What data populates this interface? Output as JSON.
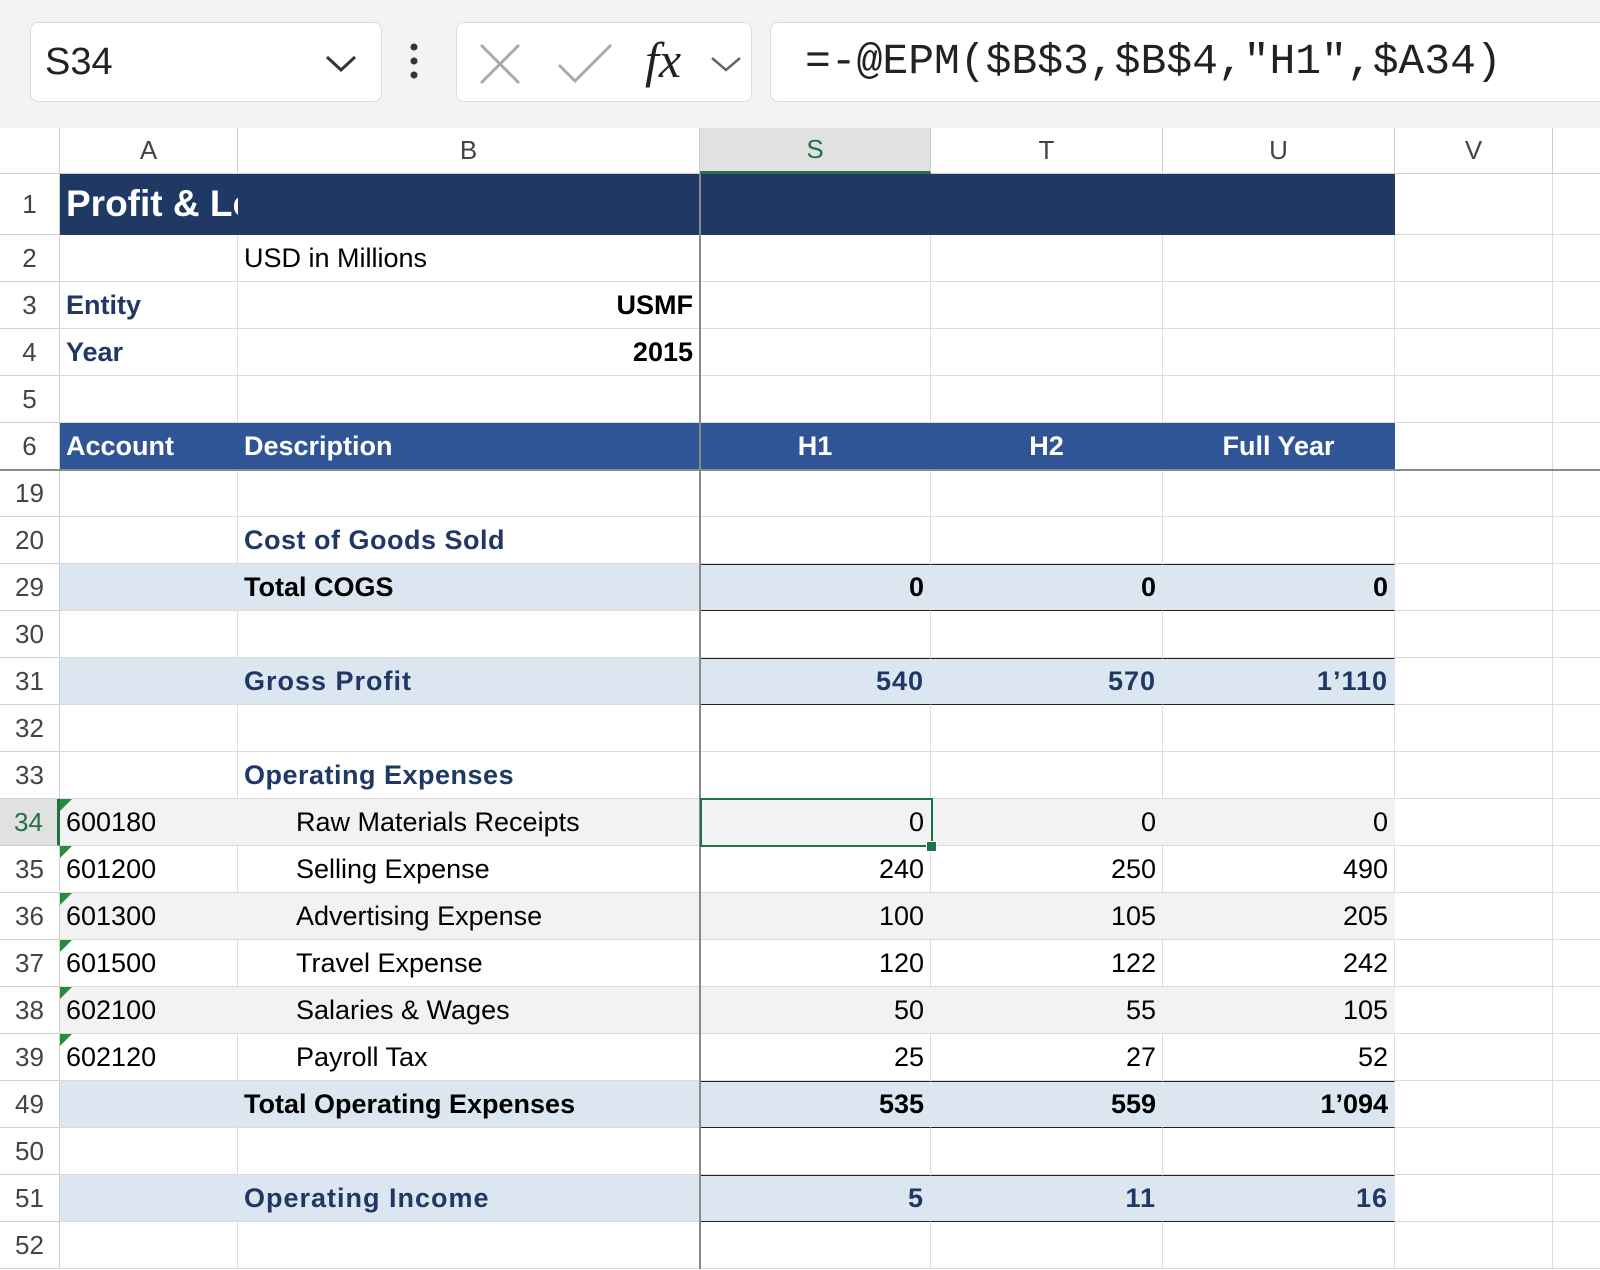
{
  "formula_bar": {
    "name_box": "S34",
    "function_icon": "fx",
    "formula": "=-@EPM($B$3,$B$4,\"H1\",$A34)"
  },
  "column_headers": [
    "A",
    "B",
    "S",
    "T",
    "U",
    "V"
  ],
  "rows": [
    {
      "header": "1",
      "A": "Profit & Loss Statement"
    },
    {
      "header": "2",
      "B": "USD in Millions"
    },
    {
      "header": "3",
      "A": "Entity",
      "B": "USMF"
    },
    {
      "header": "4",
      "A": "Year",
      "B": "2015"
    },
    {
      "header": "5"
    },
    {
      "header": "6",
      "A": "Account",
      "B": "Description",
      "S": "H1",
      "T": "H2",
      "U": "Full Year"
    },
    {
      "header": "19"
    },
    {
      "header": "20",
      "B": "Cost of Goods Sold"
    },
    {
      "header": "29",
      "B": "Total COGS",
      "S": "0",
      "T": "0",
      "U": "0"
    },
    {
      "header": "30"
    },
    {
      "header": "31",
      "B": "Gross Profit",
      "S": "540",
      "T": "570",
      "U": "1’110"
    },
    {
      "header": "32"
    },
    {
      "header": "33",
      "B": "Operating Expenses"
    },
    {
      "header": "34",
      "A": "600180",
      "B": "Raw Materials Receipts",
      "S": "0",
      "T": "0",
      "U": "0"
    },
    {
      "header": "35",
      "A": "601200",
      "B": "Selling Expense",
      "S": "240",
      "T": "250",
      "U": "490"
    },
    {
      "header": "36",
      "A": "601300",
      "B": "Advertising Expense",
      "S": "100",
      "T": "105",
      "U": "205"
    },
    {
      "header": "37",
      "A": "601500",
      "B": "Travel Expense",
      "S": "120",
      "T": "122",
      "U": "242"
    },
    {
      "header": "38",
      "A": "602100",
      "B": "Salaries & Wages",
      "S": "50",
      "T": "55",
      "U": "105"
    },
    {
      "header": "39",
      "A": "602120",
      "B": "Payroll Tax",
      "S": "25",
      "T": "27",
      "U": "52"
    },
    {
      "header": "49",
      "B": "Total Operating Expenses",
      "S": "535",
      "T": "559",
      "U": "1’094"
    },
    {
      "header": "50"
    },
    {
      "header": "51",
      "B": "Operating Income",
      "S": "5",
      "T": "11",
      "U": "16"
    },
    {
      "header": "52"
    }
  ]
}
